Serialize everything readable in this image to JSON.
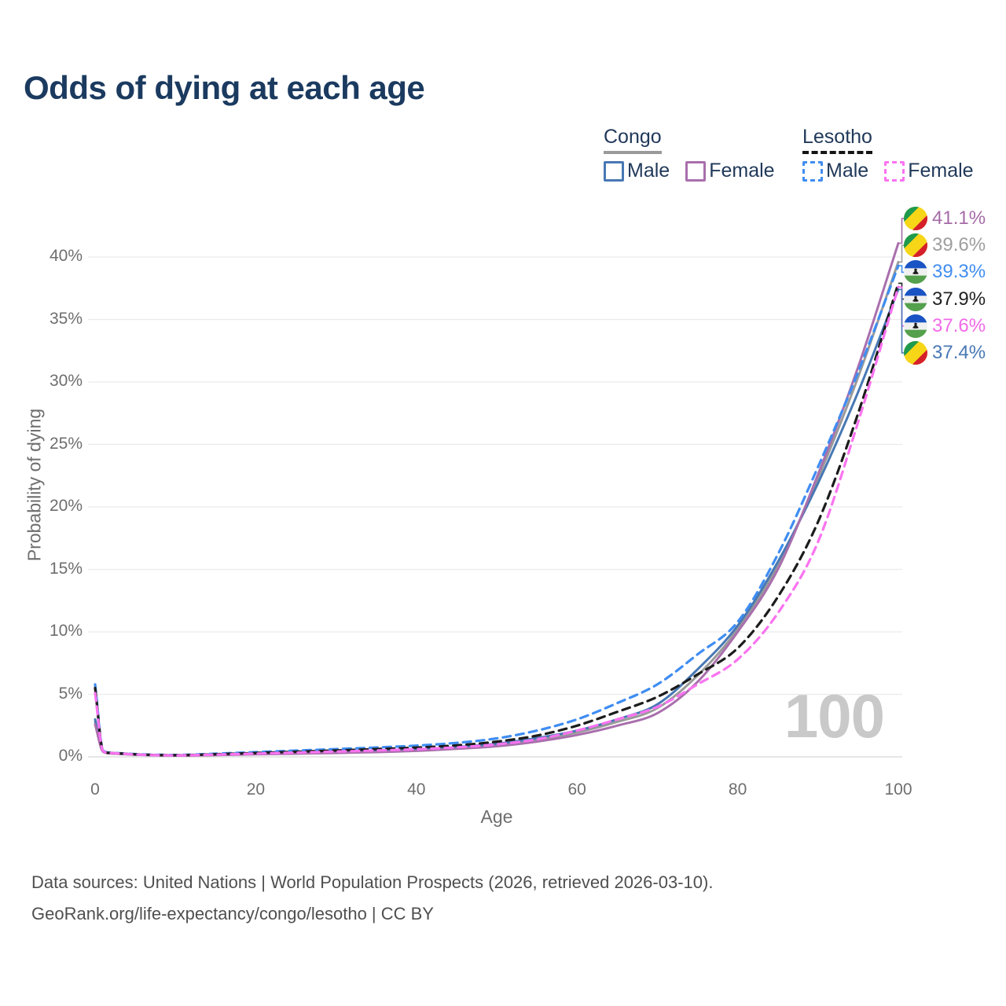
{
  "title": "Odds of dying at each age",
  "legend": {
    "groups": [
      {
        "label": "Congo",
        "line_style": "solid",
        "underline_color": "#9a9a9a",
        "items": [
          {
            "label": "Male",
            "color": "#4878b4",
            "dashed": false
          },
          {
            "label": "Female",
            "color": "#a96fad",
            "dashed": false
          }
        ]
      },
      {
        "label": "Lesotho",
        "line_style": "dashed",
        "underline_color": "#141414",
        "items": [
          {
            "label": "Male",
            "color": "#3f8df2",
            "dashed": true
          },
          {
            "label": "Female",
            "color": "#fa73f0",
            "dashed": true
          }
        ]
      }
    ]
  },
  "axes": {
    "x_label": "Age",
    "y_label": "Probability of dying"
  },
  "watermark": "100",
  "chart_data": {
    "type": "line",
    "title": "Odds of dying at each age",
    "xlabel": "Age",
    "ylabel": "Probability of dying",
    "xlim": [
      0,
      100
    ],
    "ylim": [
      0,
      43
    ],
    "grid": true,
    "x_ticks": [
      0,
      20,
      40,
      60,
      80,
      100
    ],
    "y_ticks": [
      0,
      5,
      10,
      15,
      20,
      25,
      30,
      35,
      40
    ],
    "y_tick_suffix": "%",
    "x": [
      0,
      1,
      2,
      5,
      10,
      15,
      20,
      25,
      30,
      35,
      40,
      45,
      50,
      55,
      60,
      65,
      70,
      75,
      80,
      85,
      90,
      95,
      100
    ],
    "series": [
      {
        "key": "congo-both",
        "name": "Congo Both sexes",
        "color": "#9a9a9a",
        "dashed": false,
        "values": [
          2.8,
          0.42,
          0.28,
          0.18,
          0.11,
          0.16,
          0.22,
          0.28,
          0.34,
          0.42,
          0.53,
          0.71,
          0.95,
          1.35,
          1.95,
          2.8,
          3.9,
          6.5,
          10.2,
          15.3,
          22.3,
          30.4,
          39.6
        ]
      },
      {
        "key": "congo-male",
        "name": "Congo Male",
        "color": "#4878b4",
        "dashed": false,
        "values": [
          3.0,
          0.44,
          0.3,
          0.19,
          0.12,
          0.17,
          0.24,
          0.3,
          0.37,
          0.46,
          0.58,
          0.78,
          1.05,
          1.5,
          2.1,
          3.0,
          4.2,
          7.0,
          10.5,
          15.6,
          21.9,
          29.2,
          37.4
        ]
      },
      {
        "key": "congo-female",
        "name": "Congo Female",
        "color": "#a96fad",
        "dashed": false,
        "values": [
          2.6,
          0.4,
          0.27,
          0.17,
          0.1,
          0.14,
          0.2,
          0.25,
          0.31,
          0.38,
          0.48,
          0.64,
          0.85,
          1.22,
          1.75,
          2.5,
          3.5,
          6.0,
          10.0,
          15.0,
          22.6,
          31.2,
          41.1
        ]
      },
      {
        "key": "lesotho-male",
        "name": "Lesotho Male",
        "color": "#3f8df2",
        "dashed": true,
        "values": [
          5.8,
          0.5,
          0.33,
          0.22,
          0.15,
          0.25,
          0.38,
          0.5,
          0.62,
          0.75,
          0.9,
          1.12,
          1.48,
          2.1,
          3.0,
          4.3,
          5.8,
          8.2,
          10.8,
          16.2,
          23.2,
          30.8,
          39.3
        ]
      },
      {
        "key": "lesotho-both",
        "name": "Lesotho Both sexes",
        "color": "#1c1c1c",
        "dashed": true,
        "values": [
          5.5,
          0.48,
          0.31,
          0.2,
          0.13,
          0.21,
          0.31,
          0.41,
          0.51,
          0.62,
          0.74,
          0.92,
          1.22,
          1.7,
          2.5,
          3.6,
          4.8,
          6.6,
          8.7,
          12.8,
          18.8,
          27.5,
          37.9
        ]
      },
      {
        "key": "lesotho-female",
        "name": "Lesotho Female",
        "color": "#fa73f0",
        "dashed": true,
        "values": [
          5.1,
          0.46,
          0.3,
          0.19,
          0.12,
          0.18,
          0.26,
          0.34,
          0.42,
          0.51,
          0.61,
          0.76,
          1.0,
          1.4,
          2.1,
          3.0,
          4.0,
          5.8,
          7.8,
          11.5,
          17.2,
          26.8,
          37.6
        ]
      }
    ],
    "end_labels": [
      {
        "key": "congo-female",
        "text": "41.1%",
        "value": 41.1,
        "flag": "congo",
        "color": "#a56ba8"
      },
      {
        "key": "congo-both",
        "text": "39.6%",
        "value": 39.6,
        "flag": "congo",
        "color": "#9e9e9e"
      },
      {
        "key": "lesotho-male",
        "text": "39.3%",
        "value": 39.3,
        "flag": "lesotho",
        "color": "#418ef0"
      },
      {
        "key": "lesotho-both",
        "text": "37.9%",
        "value": 37.9,
        "flag": "lesotho",
        "color": "#222222"
      },
      {
        "key": "lesotho-female",
        "text": "37.6%",
        "value": 37.6,
        "flag": "lesotho",
        "color": "#f06ae8"
      },
      {
        "key": "congo-male",
        "text": "37.4%",
        "value": 37.4,
        "flag": "congo",
        "color": "#4878b4"
      }
    ],
    "legend_position": "top-right"
  },
  "footer": {
    "line1": "Data sources: United Nations | World Population Prospects (2026, retrieved 2026-03-10).",
    "line2": "GeoRank.org/life-expectancy/congo/lesotho | CC BY"
  }
}
